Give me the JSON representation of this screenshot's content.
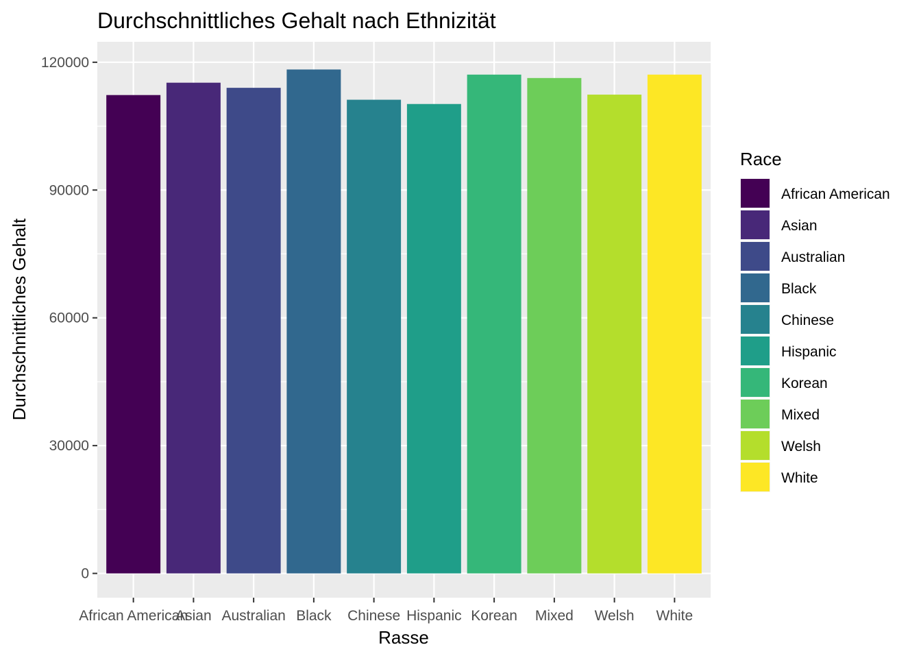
{
  "chart_data": {
    "type": "bar",
    "title": "Durchschnittliches Gehalt nach Ethnizität",
    "xlabel": "Rasse",
    "ylabel": "Durchschnittliches Gehalt",
    "categories": [
      "African American",
      "Asian",
      "Australian",
      "Black",
      "Chinese",
      "Hispanic",
      "Korean",
      "Mixed",
      "Welsh",
      "White"
    ],
    "values": [
      112300,
      115200,
      114000,
      118300,
      111200,
      110200,
      117100,
      116300,
      112400,
      117100
    ],
    "colors": [
      "#440154",
      "#482878",
      "#3E4A89",
      "#31688E",
      "#26828E",
      "#1F9E89",
      "#35B779",
      "#6DCD59",
      "#B4DE2C",
      "#FDE725"
    ],
    "ylim": [
      -5700,
      124800
    ],
    "yticks": [
      0,
      30000,
      60000,
      90000,
      120000
    ],
    "ytick_labels": [
      "0",
      "30000",
      "60000",
      "90000",
      "120000"
    ],
    "grid": true,
    "panel_background": "#EBEBEB",
    "legend": {
      "title": "Race",
      "position": "right",
      "entries": [
        "African American",
        "Asian",
        "Australian",
        "Black",
        "Chinese",
        "Hispanic",
        "Korean",
        "Mixed",
        "Welsh",
        "White"
      ]
    }
  }
}
